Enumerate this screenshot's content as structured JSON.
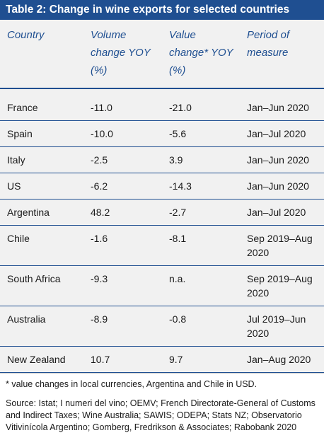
{
  "title": "Table 2: Change in wine exports for selected countries",
  "columns": [
    "Country",
    "Volume change YOY (%)",
    "Value change* YOY (%)",
    "Period of measure"
  ],
  "rows": [
    {
      "country": "France",
      "volume": "-11.0",
      "value": "-21.0",
      "period": "Jan–Jun 2020"
    },
    {
      "country": "Spain",
      "volume": "-10.0",
      "value": "-5.6",
      "period": "Jan–Jul 2020"
    },
    {
      "country": "Italy",
      "volume": "-2.5",
      "value": "3.9",
      "period": "Jan–Jun 2020"
    },
    {
      "country": "US",
      "volume": "-6.2",
      "value": "-14.3",
      "period": "Jan–Jun 2020"
    },
    {
      "country": "Argentina",
      "volume": "48.2",
      "value": "-2.7",
      "period": "Jan–Jul 2020"
    },
    {
      "country": "Chile",
      "volume": "-1.6",
      "value": "-8.1",
      "period": "Sep 2019–Aug 2020"
    },
    {
      "country": "South Africa",
      "volume": "-9.3",
      "value": "n.a.",
      "period": "Sep 2019–Aug 2020"
    },
    {
      "country": "Australia",
      "volume": "-8.9",
      "value": "-0.8",
      "period": "Jul 2019–Jun 2020"
    },
    {
      "country": "New Zealand",
      "volume": "10.7",
      "value": "9.7",
      "period": "Jan–Aug 2020"
    }
  ],
  "footnote": "* value changes in local currencies, Argentina and Chile in USD.",
  "source": "Source: Istat; I numeri del vino; OEMV; French Directorate-General of Customs and Indirect Taxes; Wine Australia; SAWIS; ODEPA; Stats NZ; Observatorio Vitivinícola Argentino; Gomberg, Fredrikson & Associates; Rabobank 2020",
  "colors": {
    "accent": "#1f4f91",
    "panel": "#f1f1f1"
  }
}
